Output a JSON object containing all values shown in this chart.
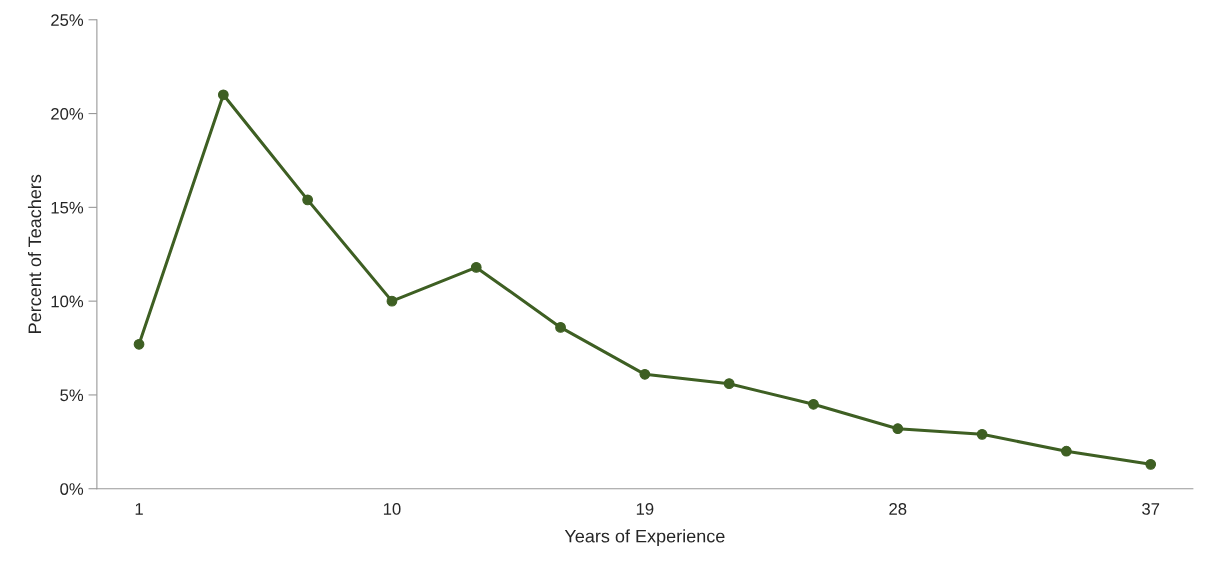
{
  "chart_data": {
    "type": "line",
    "xlabel": "Years of Experience",
    "ylabel": "Percent of Teachers",
    "categories": [
      "1",
      null,
      null,
      "10",
      null,
      null,
      "19",
      null,
      null,
      "28",
      null,
      null,
      "37"
    ],
    "series": [
      {
        "color": "#3e5f23",
        "values": [
          7.7,
          21.0,
          15.4,
          10.0,
          11.8,
          8.6,
          6.1,
          5.6,
          4.5,
          3.2,
          2.9,
          2.0,
          1.3
        ]
      }
    ],
    "ylim": [
      0,
      25
    ],
    "yticks": [
      {
        "value": 0,
        "label": "0%"
      },
      {
        "value": 5,
        "label": "5%"
      },
      {
        "value": 10,
        "label": "10%"
      },
      {
        "value": 15,
        "label": "15%"
      },
      {
        "value": 20,
        "label": "20%"
      },
      {
        "value": 25,
        "label": "25%"
      }
    ],
    "marker": "circle",
    "line_style": "solid",
    "grid": false,
    "legend": false
  }
}
